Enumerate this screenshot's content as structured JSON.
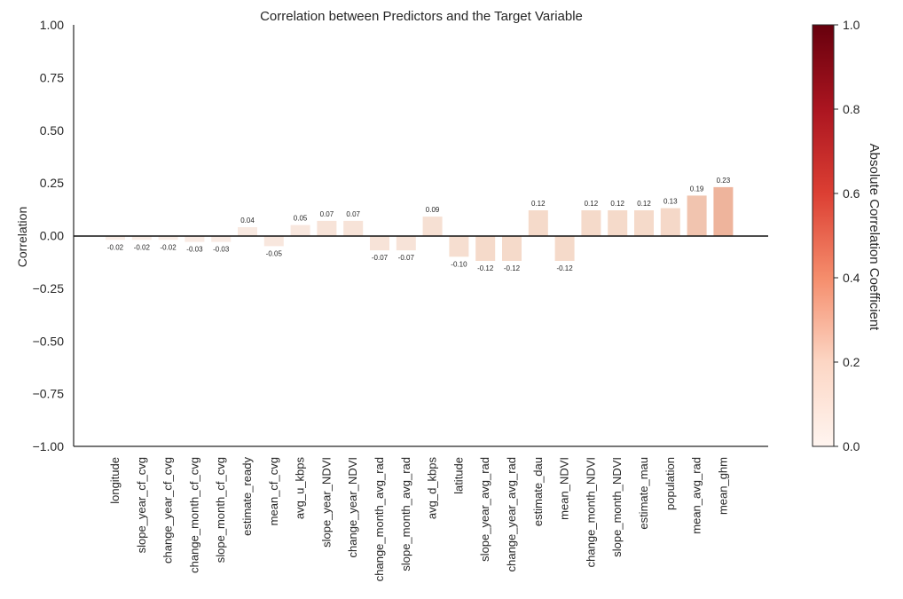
{
  "chart_data": {
    "type": "bar",
    "title": "Correlation between Predictors and the Target Variable",
    "xlabel": "",
    "ylabel": "Correlation",
    "ylim": [
      -1.0,
      1.0
    ],
    "yticks": [
      "1.00",
      "0.75",
      "0.50",
      "0.25",
      "0.00",
      "−0.25",
      "−0.50",
      "−0.75",
      "−1.00"
    ],
    "ytick_values": [
      1.0,
      0.75,
      0.5,
      0.25,
      0.0,
      -0.25,
      -0.5,
      -0.75,
      -1.0
    ],
    "categories": [
      "longitude",
      "slope_year_cf_cvg",
      "change_year_cf_cvg",
      "change_month_cf_cvg",
      "slope_month_cf_cvg",
      "estimate_ready",
      "mean_cf_cvg",
      "avg_u_kbps",
      "slope_year_NDVI",
      "change_year_NDVI",
      "change_month_avg_rad",
      "slope_month_avg_rad",
      "avg_d_kbps",
      "latitude",
      "slope_year_avg_rad",
      "change_year_avg_rad",
      "estimate_dau",
      "mean_NDVI",
      "change_month_NDVI",
      "slope_month_NDVI",
      "estimate_mau",
      "population",
      "mean_avg_rad",
      "mean_ghm"
    ],
    "values": [
      -0.02,
      -0.02,
      -0.02,
      -0.03,
      -0.03,
      0.04,
      -0.05,
      0.05,
      0.07,
      0.07,
      -0.07,
      -0.07,
      0.09,
      -0.1,
      -0.12,
      -0.12,
      0.12,
      -0.12,
      0.12,
      0.12,
      0.12,
      0.13,
      0.19,
      0.23
    ],
    "value_labels": [
      "-0.02",
      "-0.02",
      "-0.02",
      "-0.03",
      "-0.03",
      "0.04",
      "-0.05",
      "0.05",
      "0.07",
      "0.07",
      "-0.07",
      "-0.07",
      "0.09",
      "-0.10",
      "-0.12",
      "-0.12",
      "0.12",
      "-0.12",
      "0.12",
      "0.12",
      "0.12",
      "0.13",
      "0.19",
      "0.23"
    ],
    "colorbar": {
      "label": "Absolute Correlation Coefficient",
      "range": [
        0.0,
        1.0
      ],
      "ticks": [
        "0.0",
        "0.2",
        "0.4",
        "0.6",
        "0.8",
        "1.0"
      ],
      "tick_values": [
        0.0,
        0.2,
        0.4,
        0.6,
        0.8,
        1.0
      ],
      "colormap": "Reds",
      "colors": [
        "#faf1ec",
        "#f4d4c2",
        "#e8987a",
        "#cf4c3a",
        "#a51927",
        "#67000d"
      ]
    },
    "grid": false,
    "zero_line": true
  }
}
